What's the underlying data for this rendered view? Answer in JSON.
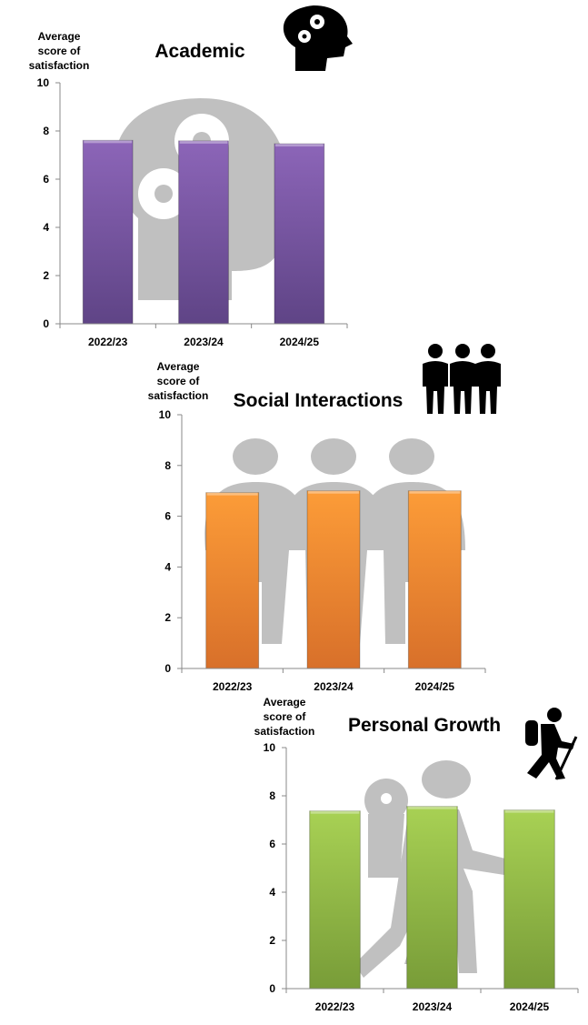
{
  "chart_data": [
    {
      "type": "bar",
      "title": "Academic",
      "ylabel": "Average score of satisfaction",
      "xlabel": "",
      "categories": [
        "2022/23",
        "2023/24",
        "2024/25"
      ],
      "values": [
        7.61,
        7.59,
        7.47
      ],
      "ylim": [
        0,
        10
      ],
      "yticks": [
        0,
        2,
        4,
        6,
        8,
        10
      ],
      "grid": false,
      "legend": "none",
      "bar_color": "#7f5aa8",
      "icon": "head-with-gears-icon",
      "background_icon": "head-with-gears-silhouette"
    },
    {
      "type": "bar",
      "title": "Social Interactions",
      "ylabel": "Average score of satisfaction",
      "xlabel": "",
      "categories": [
        "2022/23",
        "2023/24",
        "2024/25"
      ],
      "values": [
        6.93,
        7.0,
        7.0
      ],
      "ylim": [
        0,
        10
      ],
      "yticks": [
        0,
        2,
        4,
        6,
        8,
        10
      ],
      "grid": false,
      "legend": "none",
      "bar_color": "#f7912f",
      "icon": "three-people-icon",
      "background_icon": "three-people-silhouette"
    },
    {
      "type": "bar",
      "title": "Personal Growth",
      "ylabel": "Average score of satisfaction",
      "xlabel": "",
      "categories": [
        "2022/23",
        "2023/24",
        "2024/25"
      ],
      "values": [
        7.37,
        7.56,
        7.41
      ],
      "ylim": [
        0,
        10
      ],
      "yticks": [
        0,
        2,
        4,
        6,
        8,
        10
      ],
      "grid": false,
      "legend": "none",
      "bar_color": "#93bb45",
      "icon": "hiker-icon",
      "background_icon": "hiker-silhouette"
    }
  ]
}
